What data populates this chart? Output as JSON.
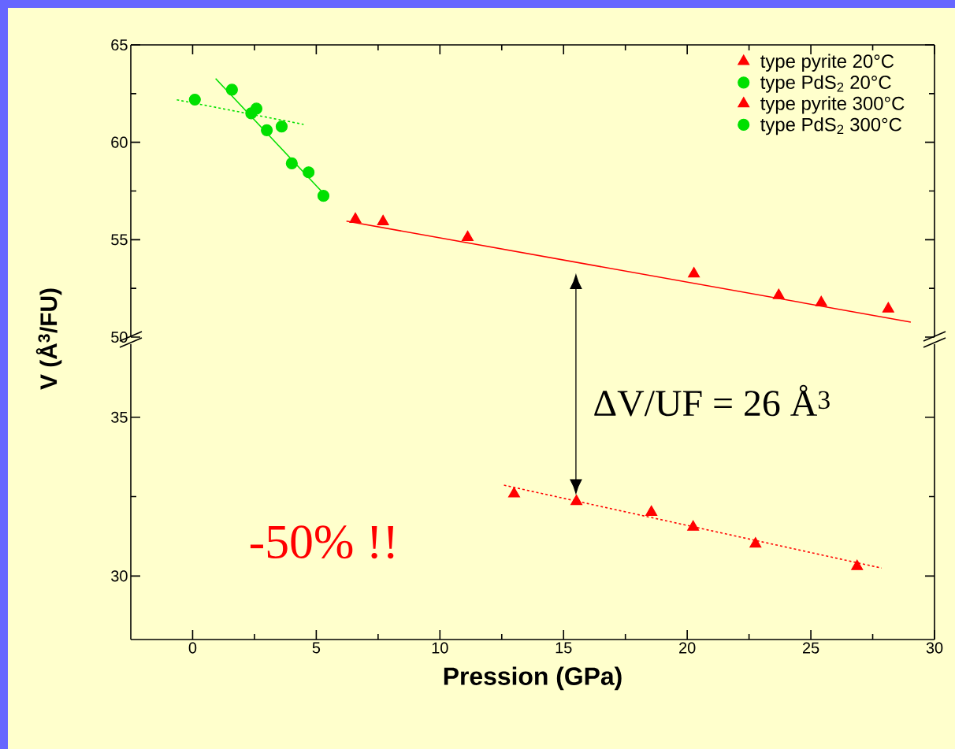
{
  "chart_data": [
    {
      "type": "scatter",
      "ylabel": "V (Å$^{3}$/FU)",
      "xlim": [
        -2.5,
        30
      ],
      "xticks": [
        0,
        5,
        10,
        15,
        20,
        25,
        30
      ],
      "ylim": [
        50,
        65
      ],
      "yticks": [
        50,
        55,
        60,
        65
      ],
      "tick_labels": "y",
      "legend": "top right",
      "series": [
        {
          "name": "type pyrite 20°C",
          "color": "#ff0000",
          "marker": "triangle",
          "x": [
            6.58,
            7.7,
            11.12,
            20.27,
            23.7,
            25.42,
            28.13
          ],
          "values": [
            56.05,
            55.93,
            55.12,
            53.25,
            52.14,
            51.77,
            51.45
          ]
        },
        {
          "name": "type PdS$_{2}$ 20°C",
          "color": "#00e000",
          "marker": "circle",
          "x": [
            1.59,
            2.37,
            3.0,
            4.01,
            4.69,
            5.29
          ],
          "values": [
            62.7,
            61.49,
            60.62,
            58.92,
            58.46,
            57.25
          ]
        },
        {
          "name": "type PdS$_{2}$ 300°C",
          "color": "#00e000",
          "marker": "circle",
          "x": [
            0.09,
            2.58,
            3.6
          ],
          "values": [
            62.19,
            61.73,
            60.81
          ]
        },
        {
          "type": "line",
          "color": "#ff0000",
          "line_style": "solid",
          "x": [
            6.22,
            29.04
          ],
          "values": [
            55.95,
            50.77
          ]
        },
        {
          "type": "line",
          "color": "#00e000",
          "line_style": "solid",
          "x": [
            0.93,
            5.2
          ],
          "values": [
            63.27,
            57.5
          ]
        },
        {
          "type": "line",
          "color": "#00e000",
          "line_style": "dotted",
          "x": [
            -0.64,
            4.49
          ],
          "values": [
            62.18,
            60.92
          ]
        }
      ]
    },
    {
      "type": "scatter",
      "xlabel": "Pression (GPa)",
      "xlim": [
        -2.5,
        30
      ],
      "xticks": [
        0,
        5,
        10,
        15,
        20,
        25,
        30
      ],
      "ylim": [
        28,
        37.3
      ],
      "yticks": [
        30,
        35
      ],
      "annotations": [
        {
          "text": "ΔV/UF = 26 Å$^{3}$",
          "x": 15.5,
          "y": 32.35
        },
        "-50% !!"
      ],
      "series": [
        {
          "name": "type pyrite 300°C",
          "color": "#ff0000",
          "marker": "triangle",
          "x": [
            13.0,
            15.52,
            18.55,
            20.24,
            22.76,
            26.87
          ],
          "values": [
            32.59,
            32.35,
            32.01,
            31.54,
            31.01,
            30.3
          ]
        },
        {
          "type": "line",
          "color": "#ff0000",
          "line_style": "dotted",
          "x": [
            12.59,
            27.86
          ],
          "values": [
            32.86,
            30.25
          ]
        }
      ]
    }
  ]
}
